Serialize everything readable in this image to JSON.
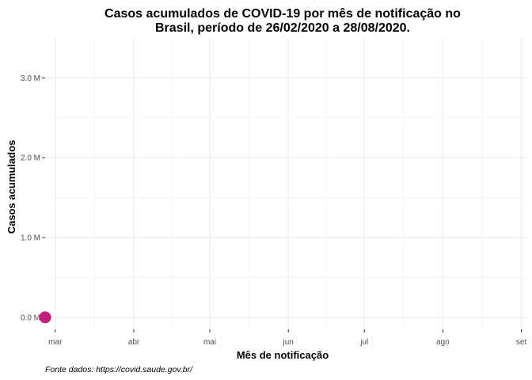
{
  "chart_data": {
    "type": "scatter",
    "title": "Casos acumulados de COVID-19 por mês de notificação no Brasil, período de 26/02/2020 a 28/08/2020.",
    "title_lines": [
      "Casos acumulados de COVID-19 por mês de notificação no",
      "Brasil, período de 26/02/2020 a 28/08/2020."
    ],
    "xlabel": "Mês de notificação",
    "ylabel": "Casos acumulados",
    "caption": "Fonte dados: https://covid.saude.gov.br/",
    "x_ticks": [
      "mar",
      "abr",
      "mai",
      "jun",
      "jul",
      "ago",
      "set"
    ],
    "x_tick_values": [
      "2020-03-01",
      "2020-04-01",
      "2020-05-01",
      "2020-06-01",
      "2020-07-01",
      "2020-08-01",
      "2020-09-01"
    ],
    "xlim": [
      "2020-02-26",
      "2020-09-03"
    ],
    "y_ticks": [
      0,
      1000000,
      2000000,
      3000000
    ],
    "y_tick_labels": [
      "0.0 M",
      "1.0 M",
      "2.0 M",
      "3.0 M"
    ],
    "ylim": [
      -150000,
      3500000
    ],
    "grid": true,
    "legend": "none",
    "points": [
      {
        "x": "2020-02-26",
        "y": 1
      }
    ],
    "point_color": "#c51b7d"
  }
}
